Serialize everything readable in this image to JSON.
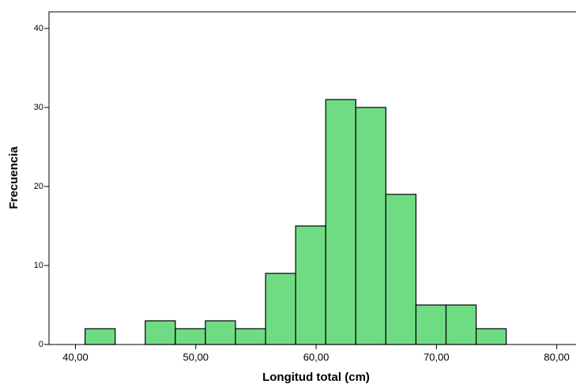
{
  "chart_data": {
    "type": "histogram",
    "xlabel": "Longitud total (cm)",
    "ylabel": "Frecuencia",
    "bins": [
      40.8,
      43.3,
      45.8,
      48.3,
      50.8,
      53.3,
      55.8,
      58.3,
      60.8,
      63.3,
      65.8,
      68.3,
      70.8,
      73.3,
      75.8
    ],
    "values": [
      2,
      0,
      3,
      2,
      3,
      2,
      9,
      15,
      31,
      30,
      19,
      5,
      5,
      2
    ],
    "color": "#6fdc84",
    "xlim": [
      37.8,
      81.6
    ],
    "xticks": [
      {
        "value": 40,
        "label": "40,00"
      },
      {
        "value": 50,
        "label": "50,00"
      },
      {
        "value": 60,
        "label": "60,00"
      },
      {
        "value": 70,
        "label": "70,00"
      },
      {
        "value": 80,
        "label": "80,00"
      }
    ],
    "ylim": [
      0,
      42.1
    ],
    "yticks": [
      0,
      10,
      20,
      30,
      40
    ]
  }
}
